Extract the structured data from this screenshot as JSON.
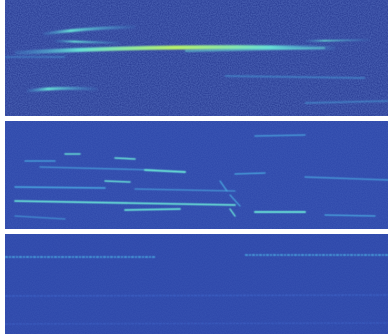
{
  "figure": {
    "colormap": [
      "#2a3f9c",
      "#3d63c7",
      "#4aa8e0",
      "#67e0d6",
      "#b8f26a"
    ],
    "panels": [
      {
        "id": "p1",
        "background": "#23358f",
        "noise": "coarse"
      },
      {
        "id": "p2",
        "background": "#2b45a8",
        "noise": "fine"
      },
      {
        "id": "p3",
        "background": "#2b45a8",
        "noise": "fine"
      }
    ]
  }
}
